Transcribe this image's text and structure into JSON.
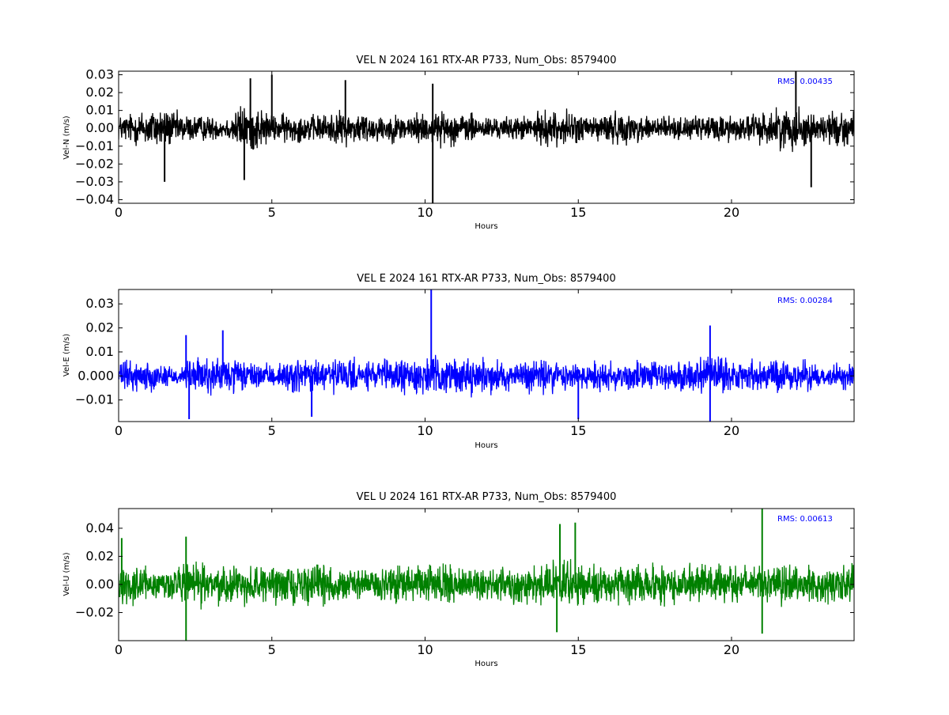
{
  "chart_data": [
    {
      "type": "line",
      "title": "VEL N 2024 161 RTX-AR  P733, Num_Obs: 8579400",
      "xlabel": "Hours",
      "ylabel": "Vel-N (m/s)",
      "xlim": [
        0,
        24
      ],
      "ylim": [
        -0.042,
        0.032
      ],
      "xticks": [
        0,
        5,
        10,
        15,
        20
      ],
      "xtick_labels": [
        "0",
        "5",
        "10",
        "15",
        "20"
      ],
      "yticks": [
        -0.04,
        -0.03,
        -0.02,
        -0.01,
        0.0,
        0.01,
        0.02,
        0.03
      ],
      "ytick_labels": [
        "−0.04",
        "−0.03",
        "−0.02",
        "−0.01",
        "0.00",
        "0.01",
        "0.02",
        "0.03"
      ],
      "grid": false,
      "series_color": "#000000",
      "annotation": {
        "text": "RMS:  0.00435",
        "placement": "top-right",
        "color": "#0000ff"
      },
      "envelope": {
        "x": [
          0,
          0.5,
          1,
          1.5,
          2,
          2.5,
          3,
          3.5,
          4,
          4.5,
          5,
          5.5,
          6,
          6.5,
          7,
          7.5,
          8,
          8.5,
          9,
          9.5,
          10,
          10.5,
          11,
          11.5,
          12,
          12.5,
          13,
          13.5,
          14,
          14.5,
          15,
          15.5,
          16,
          16.5,
          17,
          17.5,
          18,
          18.5,
          19,
          19.5,
          20,
          20.5,
          21,
          21.5,
          22,
          22.5,
          23,
          23.5,
          24
        ],
        "amplitude": [
          0.009,
          0.011,
          0.014,
          0.014,
          0.01,
          0.009,
          0.008,
          0.007,
          0.016,
          0.016,
          0.009,
          0.01,
          0.009,
          0.009,
          0.011,
          0.011,
          0.011,
          0.009,
          0.009,
          0.01,
          0.011,
          0.011,
          0.011,
          0.01,
          0.008,
          0.007,
          0.008,
          0.009,
          0.012,
          0.012,
          0.01,
          0.009,
          0.011,
          0.01,
          0.009,
          0.01,
          0.008,
          0.007,
          0.008,
          0.01,
          0.009,
          0.009,
          0.011,
          0.013,
          0.015,
          0.012,
          0.009,
          0.013,
          0.011
        ]
      },
      "spikes": [
        {
          "x": 10.25,
          "y": -0.042
        },
        {
          "x": 10.25,
          "y": 0.025
        },
        {
          "x": 22.1,
          "y": 0.032
        },
        {
          "x": 22.6,
          "y": -0.033
        },
        {
          "x": 5.0,
          "y": 0.03
        },
        {
          "x": 7.4,
          "y": 0.027
        },
        {
          "x": 1.5,
          "y": -0.03
        },
        {
          "x": 4.3,
          "y": 0.028
        },
        {
          "x": 4.1,
          "y": -0.029
        }
      ]
    },
    {
      "type": "line",
      "title": "VEL E 2024 161 RTX-AR  P733, Num_Obs: 8579400",
      "xlabel": "Hours",
      "ylabel": "Vel-E (m/s)",
      "xlim": [
        0,
        24
      ],
      "ylim": [
        -0.019,
        0.036
      ],
      "xticks": [
        0,
        5,
        10,
        15,
        20
      ],
      "xtick_labels": [
        "0",
        "5",
        "10",
        "15",
        "20"
      ],
      "yticks": [
        -0.01,
        0.0,
        0.01,
        0.02,
        0.03
      ],
      "ytick_labels": [
        "−0.01",
        "0.000",
        "0.01",
        "0.02",
        "0.03"
      ],
      "grid": false,
      "series_color": "#0000ff",
      "annotation": {
        "text": "RMS:  0.00284",
        "placement": "top-right",
        "color": "#0000ff"
      },
      "envelope": {
        "x": [
          0,
          0.5,
          1,
          1.5,
          2,
          2.5,
          3,
          3.5,
          4,
          4.5,
          5,
          5.5,
          6,
          6.5,
          7,
          7.5,
          8,
          8.5,
          9,
          9.5,
          10,
          10.5,
          11,
          11.5,
          12,
          12.5,
          13,
          13.5,
          14,
          14.5,
          15,
          15.5,
          16,
          16.5,
          17,
          17.5,
          18,
          18.5,
          19,
          19.5,
          20,
          20.5,
          21,
          21.5,
          22,
          22.5,
          23,
          23.5,
          24
        ],
        "amplitude": [
          0.007,
          0.008,
          0.007,
          0.006,
          0.005,
          0.009,
          0.01,
          0.009,
          0.008,
          0.006,
          0.005,
          0.008,
          0.009,
          0.009,
          0.009,
          0.008,
          0.007,
          0.008,
          0.008,
          0.009,
          0.009,
          0.009,
          0.009,
          0.009,
          0.008,
          0.007,
          0.008,
          0.009,
          0.009,
          0.008,
          0.007,
          0.008,
          0.009,
          0.008,
          0.008,
          0.007,
          0.008,
          0.008,
          0.009,
          0.01,
          0.009,
          0.008,
          0.008,
          0.008,
          0.008,
          0.007,
          0.005,
          0.006,
          0.007
        ]
      },
      "spikes": [
        {
          "x": 10.2,
          "y": 0.036
        },
        {
          "x": 19.3,
          "y": 0.021
        },
        {
          "x": 3.4,
          "y": 0.019
        },
        {
          "x": 2.3,
          "y": -0.018
        },
        {
          "x": 19.3,
          "y": -0.019
        },
        {
          "x": 15.0,
          "y": -0.018
        },
        {
          "x": 6.3,
          "y": -0.017
        },
        {
          "x": 2.2,
          "y": 0.017
        }
      ]
    },
    {
      "type": "line",
      "title": "VEL U 2024 161 RTX-AR  P733, Num_Obs: 8579400",
      "xlabel": "Hours",
      "ylabel": "Vel-U (m/s)",
      "xlim": [
        0,
        24
      ],
      "ylim": [
        -0.04,
        0.054
      ],
      "xticks": [
        0,
        5,
        10,
        15,
        20
      ],
      "xtick_labels": [
        "0",
        "5",
        "10",
        "15",
        "20"
      ],
      "yticks": [
        -0.02,
        0.0,
        0.02,
        0.04
      ],
      "ytick_labels": [
        "−0.02",
        "0.00",
        "0.02",
        "0.04"
      ],
      "grid": false,
      "series_color": "#008000",
      "annotation": {
        "text": "RMS:  0.00613",
        "placement": "top-right",
        "color": "#0000ff"
      },
      "envelope": {
        "x": [
          0,
          0.5,
          1,
          1.5,
          2,
          2.5,
          3,
          3.5,
          4,
          4.5,
          5,
          5.5,
          6,
          6.5,
          7,
          7.5,
          8,
          8.5,
          9,
          9.5,
          10,
          10.5,
          11,
          11.5,
          12,
          12.5,
          13,
          13.5,
          14,
          14.5,
          15,
          15.5,
          16,
          16.5,
          17,
          17.5,
          18,
          18.5,
          19,
          19.5,
          20,
          20.5,
          21,
          21.5,
          22,
          22.5,
          23,
          23.5,
          24
        ],
        "amplitude": [
          0.015,
          0.016,
          0.013,
          0.014,
          0.017,
          0.018,
          0.016,
          0.017,
          0.017,
          0.015,
          0.014,
          0.016,
          0.016,
          0.017,
          0.016,
          0.014,
          0.012,
          0.014,
          0.015,
          0.016,
          0.015,
          0.016,
          0.015,
          0.014,
          0.013,
          0.014,
          0.015,
          0.017,
          0.018,
          0.019,
          0.018,
          0.017,
          0.016,
          0.016,
          0.015,
          0.017,
          0.016,
          0.015,
          0.016,
          0.017,
          0.017,
          0.016,
          0.017,
          0.017,
          0.016,
          0.014,
          0.015,
          0.017,
          0.015
        ]
      },
      "spikes": [
        {
          "x": 21.0,
          "y": 0.054
        },
        {
          "x": 2.2,
          "y": -0.04
        },
        {
          "x": 14.4,
          "y": 0.043
        },
        {
          "x": 14.9,
          "y": 0.044
        },
        {
          "x": 21.0,
          "y": -0.035
        },
        {
          "x": 14.3,
          "y": -0.034
        },
        {
          "x": 0.1,
          "y": 0.033
        },
        {
          "x": 2.2,
          "y": 0.034
        }
      ]
    }
  ]
}
